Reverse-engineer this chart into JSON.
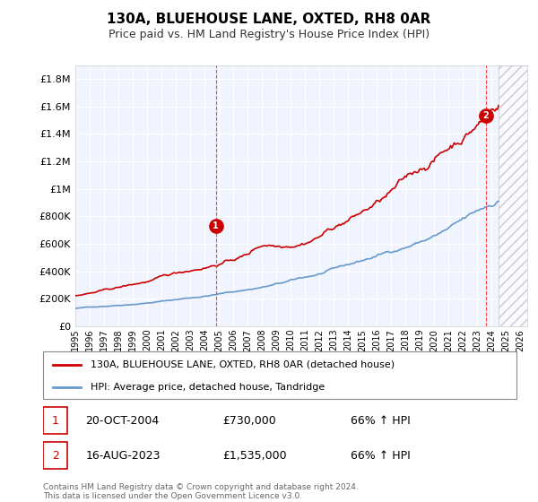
{
  "title": "130A, BLUEHOUSE LANE, OXTED, RH8 0AR",
  "subtitle": "Price paid vs. HM Land Registry's House Price Index (HPI)",
  "ytick_values": [
    0,
    200000,
    400000,
    600000,
    800000,
    1000000,
    1200000,
    1400000,
    1600000,
    1800000
  ],
  "ylim": [
    0,
    1900000
  ],
  "xlim_start": 1995.0,
  "xlim_end": 2026.5,
  "x_ticks": [
    1995,
    1996,
    1997,
    1998,
    1999,
    2000,
    2001,
    2002,
    2003,
    2004,
    2005,
    2006,
    2007,
    2008,
    2009,
    2010,
    2011,
    2012,
    2013,
    2014,
    2015,
    2016,
    2017,
    2018,
    2019,
    2020,
    2021,
    2022,
    2023,
    2024,
    2025,
    2026
  ],
  "sale1_x": 2004.8,
  "sale1_y": 730000,
  "sale1_label": "1",
  "sale2_x": 2023.62,
  "sale2_y": 1535000,
  "sale2_label": "2",
  "vline1_x": 2004.8,
  "vline2_x": 2023.62,
  "hpi_line_color": "#6699cc",
  "price_line_color": "#cc0000",
  "vline_color": "#ff4444",
  "background_color": "#f0f4ff",
  "grid_color": "#ffffff",
  "legend_label_price": "130A, BLUEHOUSE LANE, OXTED, RH8 0AR (detached house)",
  "legend_label_hpi": "HPI: Average price, detached house, Tandridge",
  "annotation1_date": "20-OCT-2004",
  "annotation1_price": "£730,000",
  "annotation1_hpi": "66% ↑ HPI",
  "annotation2_date": "16-AUG-2023",
  "annotation2_price": "£1,535,000",
  "annotation2_hpi": "66% ↑ HPI",
  "footer": "Contains HM Land Registry data © Crown copyright and database right 2024.\nThis data is licensed under the Open Government Licence v3.0.",
  "hatch_region_start": 2024.5,
  "hatch_region_end": 2026.5
}
